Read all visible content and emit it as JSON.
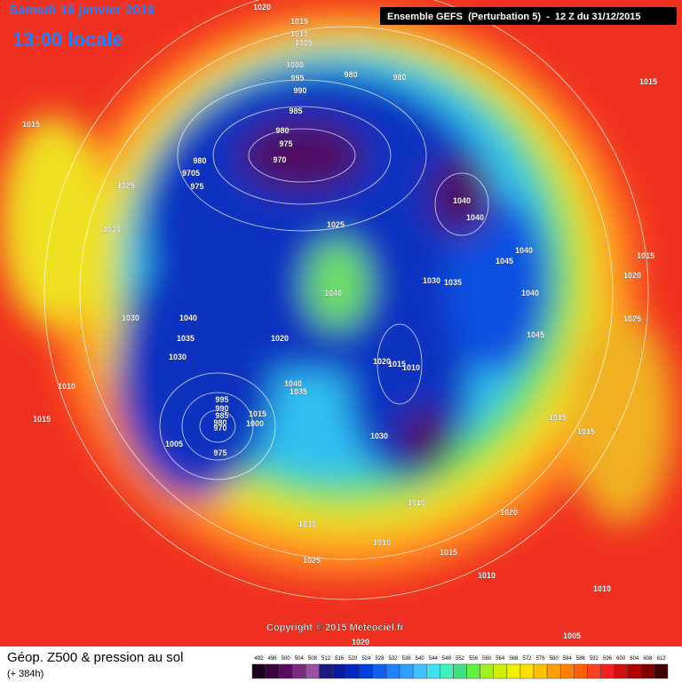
{
  "header": {
    "date": "Samedi 16 janvier 2016",
    "time": "13:00 locale",
    "run": "Ensemble GEFS  (Perturbation 5)  -  12 Z du 31/12/2015"
  },
  "copyright": "Copyright © 2015 Meteociel.fr",
  "legend": {
    "title": "Géop. Z500 & pression au sol",
    "range": "(+ 384h)"
  },
  "pressure_labels": [
    "1020",
    "1015",
    "1010",
    "1005",
    "1000",
    "995",
    "990",
    "980",
    "980",
    "985",
    "980",
    "975",
    "970",
    "980",
    "9705",
    "975",
    "1025",
    "1015",
    "1015",
    "1040",
    "1040",
    "1025",
    "1030",
    "1045",
    "1040",
    "1015",
    "1020",
    "1030",
    "1035",
    "1040",
    "1040",
    "1030",
    "1040",
    "1025",
    "1035",
    "1020",
    "1045",
    "1030",
    "1020",
    "1015",
    "1010",
    "1040",
    "1035",
    "1010",
    "995",
    "990",
    "985",
    "1015",
    "980",
    "1000",
    "970",
    "1015",
    "1015",
    "1015",
    "1005",
    "1030",
    "975",
    "1010",
    "1020",
    "1030",
    "1010",
    "1015",
    "1025",
    "1010",
    "1010",
    "1005",
    "1020"
  ],
  "scale": {
    "labels": [
      "492",
      "496",
      "500",
      "504",
      "508",
      "512",
      "516",
      "520",
      "524",
      "528",
      "532",
      "536",
      "540",
      "544",
      "548",
      "552",
      "556",
      "560",
      "564",
      "568",
      "572",
      "576",
      "580",
      "584",
      "588",
      "592",
      "596",
      "600",
      "604",
      "608",
      "612"
    ],
    "colors": [
      "#1a001a",
      "#3d0040",
      "#5a0a60",
      "#7a2a80",
      "#9a50a0",
      "#1a1a80",
      "#0a1aa0",
      "#0028c0",
      "#0040e0",
      "#1060f0",
      "#2080ff",
      "#30a0ff",
      "#40c0ff",
      "#40e0f0",
      "#40f0c0",
      "#40e080",
      "#60f040",
      "#a0f020",
      "#d0f000",
      "#f0f000",
      "#ffe000",
      "#ffc000",
      "#ffa000",
      "#ff8000",
      "#ff6000",
      "#ff4020",
      "#f02020",
      "#d01010",
      "#b00000",
      "#800000",
      "#400000"
    ]
  }
}
